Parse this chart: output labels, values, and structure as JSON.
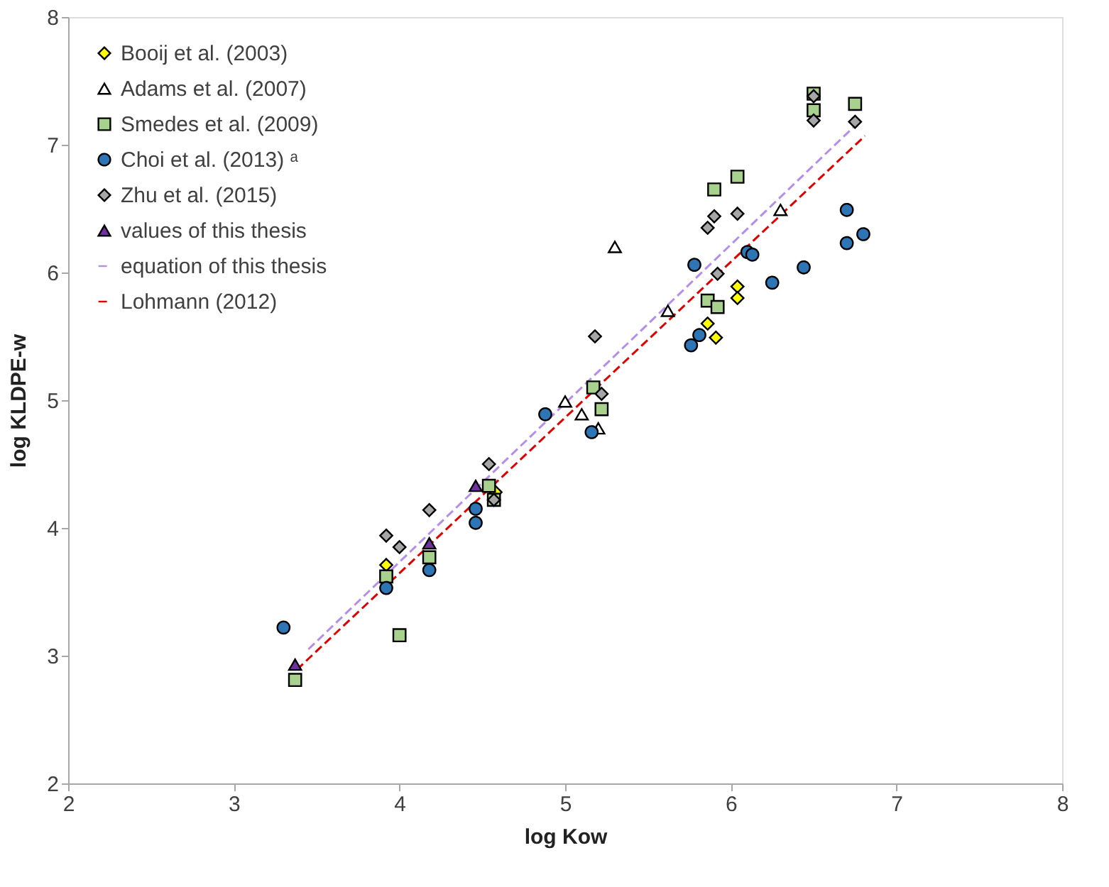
{
  "chart_data": {
    "type": "scatter",
    "xlabel": "log Kow",
    "ylabel": "log KLDPE-w",
    "xlim": [
      2,
      8
    ],
    "xticks": [
      2,
      3,
      4,
      5,
      6,
      7,
      8
    ],
    "ylim": [
      2,
      8
    ],
    "yticks": [
      2,
      3,
      4,
      5,
      6,
      7,
      8
    ],
    "grid": false,
    "legend": "top left",
    "series": [
      {
        "name": "Booij et al. (2003)",
        "marker": "diamond",
        "color": "#ffff00",
        "x": [
          3.92,
          4.58,
          5.86,
          5.91,
          6.04,
          6.04
        ],
        "values": [
          3.71,
          4.28,
          5.6,
          5.49,
          5.89,
          5.8
        ]
      },
      {
        "name": "Adams et al. (2007)",
        "marker": "triangle",
        "color": "#ffffff",
        "x": [
          5.0,
          5.1,
          5.2,
          5.3,
          5.62,
          6.3
        ],
        "values": [
          4.99,
          4.89,
          4.78,
          6.2,
          5.7,
          6.49
        ]
      },
      {
        "name": "Smedes et al. (2009)",
        "marker": "square",
        "color": "#a9d18e",
        "x": [
          3.37,
          3.92,
          4.0,
          4.18,
          4.54,
          4.57,
          5.17,
          5.22,
          5.86,
          5.92,
          5.9,
          6.04,
          6.5,
          6.5,
          6.75
        ],
        "values": [
          2.81,
          3.62,
          3.16,
          3.77,
          4.33,
          4.22,
          5.1,
          4.93,
          5.78,
          5.73,
          6.65,
          6.75,
          7.4,
          7.27,
          7.32
        ]
      },
      {
        "name": "Choi et al. (2013) ᵃ",
        "marker": "circle",
        "color": "#2e75b6",
        "x": [
          3.3,
          3.92,
          4.18,
          4.46,
          4.46,
          4.88,
          5.16,
          5.76,
          5.81,
          5.78,
          6.1,
          6.13,
          6.25,
          6.44,
          6.7,
          6.7,
          6.8
        ],
        "values": [
          3.22,
          3.53,
          3.67,
          4.15,
          4.04,
          4.89,
          4.75,
          5.43,
          5.51,
          6.06,
          6.16,
          6.14,
          5.92,
          6.04,
          6.49,
          6.23,
          6.3
        ]
      },
      {
        "name": "Zhu et al. (2015)",
        "marker": "diamond",
        "color": "#a6a6a6",
        "x": [
          3.92,
          4.0,
          4.18,
          4.54,
          4.57,
          5.18,
          5.22,
          5.86,
          5.9,
          6.04,
          5.92,
          6.5,
          6.5,
          6.75
        ],
        "values": [
          3.94,
          3.85,
          4.14,
          4.5,
          4.22,
          5.5,
          5.05,
          6.35,
          6.44,
          6.46,
          5.99,
          7.38,
          7.19,
          7.18
        ]
      },
      {
        "name": "values of this thesis",
        "marker": "triangle",
        "color": "#7030a0",
        "x": [
          3.37,
          4.18,
          4.46
        ],
        "values": [
          2.93,
          3.88,
          4.33
        ]
      },
      {
        "name": "equation of this thesis",
        "type": "line",
        "line_style": "dashed",
        "color": "#b48ee8",
        "x": [
          3.45,
          6.75
        ],
        "values": [
          3.05,
          7.15
        ]
      },
      {
        "name": "Lohmann (2012)",
        "type": "line",
        "line_style": "dashed",
        "color": "#e00000",
        "x": [
          3.38,
          6.81
        ],
        "values": [
          2.89,
          7.07
        ]
      }
    ]
  }
}
